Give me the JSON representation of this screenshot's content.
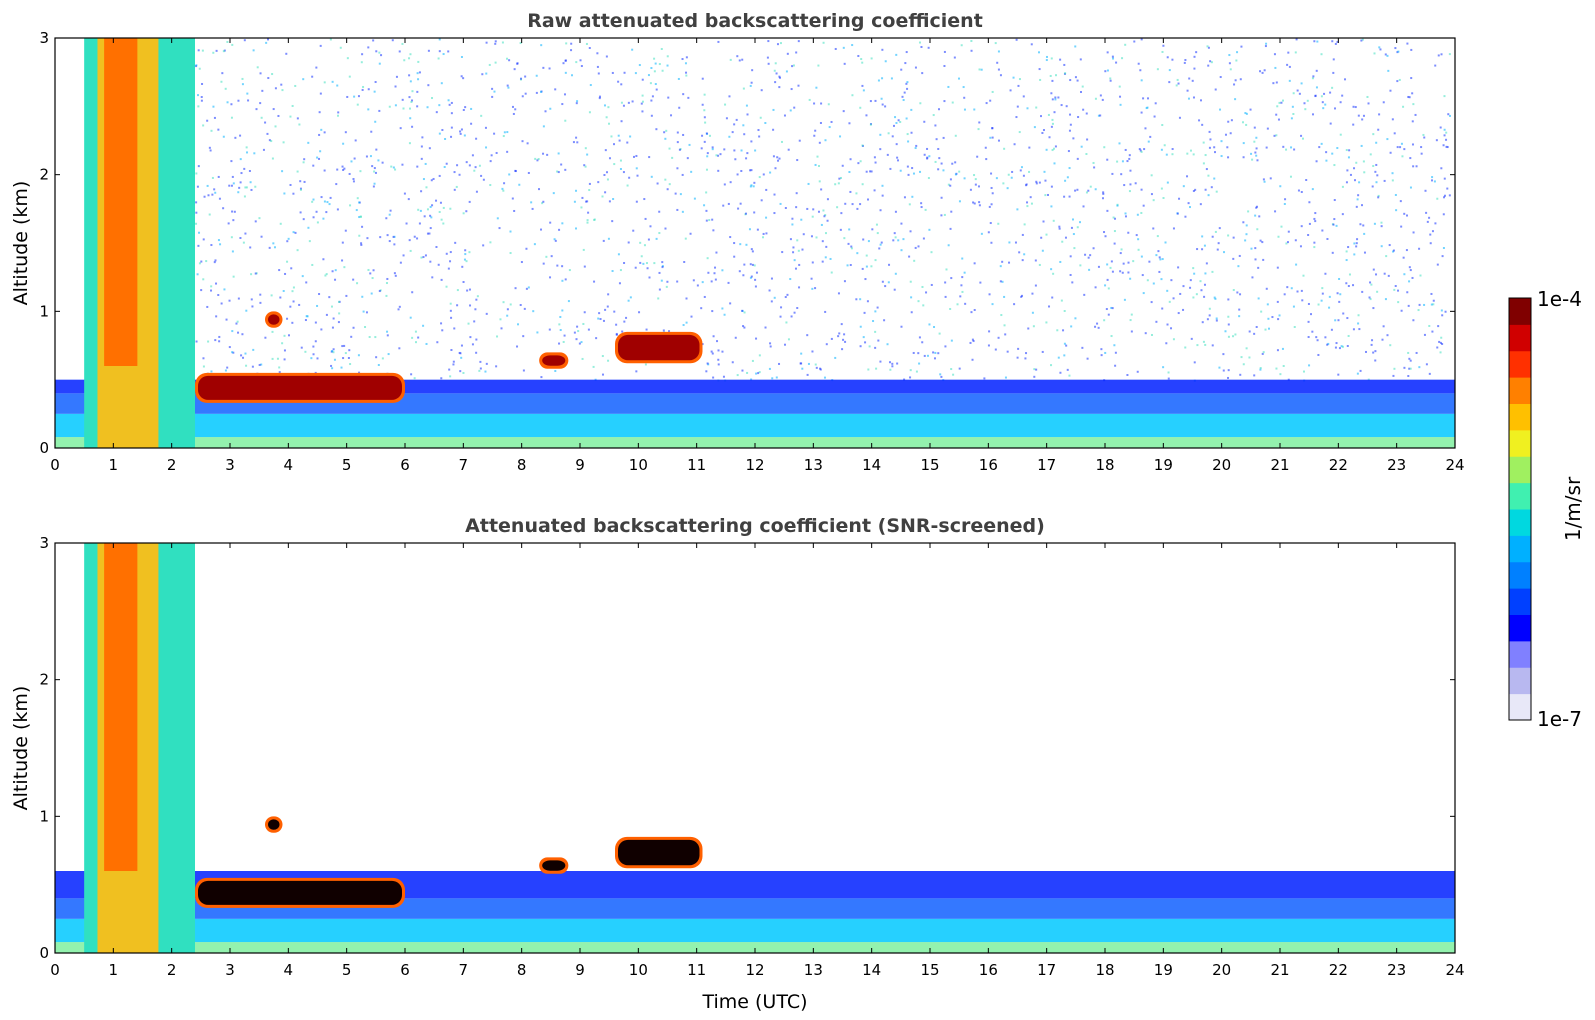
{
  "chart_data": [
    {
      "type": "heatmap",
      "title": "Raw attenuated backscattering coefficient",
      "xlabel": "",
      "ylabel": "Altitude (km)",
      "xlim": [
        0,
        24
      ],
      "ylim": [
        0,
        3
      ],
      "xticks": [
        "0",
        "1",
        "2",
        "3",
        "4",
        "5",
        "6",
        "7",
        "8",
        "9",
        "10",
        "11",
        "12",
        "13",
        "14",
        "15",
        "16",
        "17",
        "18",
        "19",
        "20",
        "21",
        "22",
        "23",
        "24"
      ],
      "yticks": [
        "0",
        "1",
        "2",
        "3"
      ],
      "features": [
        {
          "kind": "cloud",
          "t_start": 0.5,
          "t_end": 2.4,
          "z_bottom": 0.0,
          "z_top": 3.0
        },
        {
          "kind": "cloud",
          "t_start": 3.6,
          "t_end": 3.9,
          "z_bottom": 0.88,
          "z_top": 1.0
        },
        {
          "kind": "cloud",
          "t_start": 2.4,
          "t_end": 6.0,
          "z_bottom": 0.33,
          "z_top": 0.55
        },
        {
          "kind": "cloud",
          "t_start": 8.3,
          "t_end": 8.8,
          "z_bottom": 0.58,
          "z_top": 0.7
        },
        {
          "kind": "cloud",
          "t_start": 9.6,
          "t_end": 11.1,
          "z_bottom": 0.62,
          "z_top": 0.85
        },
        {
          "kind": "boundary_layer",
          "t_start": 0.0,
          "t_end": 24.0,
          "z_top": 0.5
        }
      ],
      "screened": false
    },
    {
      "type": "heatmap",
      "title": "Attenuated backscattering coefficient (SNR-screened)",
      "xlabel": "Time (UTC)",
      "ylabel": "Altitude (km)",
      "xlim": [
        0,
        24
      ],
      "ylim": [
        0,
        3
      ],
      "xticks": [
        "0",
        "1",
        "2",
        "3",
        "4",
        "5",
        "6",
        "7",
        "8",
        "9",
        "10",
        "11",
        "12",
        "13",
        "14",
        "15",
        "16",
        "17",
        "18",
        "19",
        "20",
        "21",
        "22",
        "23",
        "24"
      ],
      "yticks": [
        "0",
        "1",
        "2",
        "3"
      ],
      "features": [
        {
          "kind": "cloud",
          "t_start": 0.5,
          "t_end": 2.4,
          "z_bottom": 0.0,
          "z_top": 3.0
        },
        {
          "kind": "cloud",
          "t_start": 3.6,
          "t_end": 3.9,
          "z_bottom": 0.88,
          "z_top": 1.0
        },
        {
          "kind": "cloud",
          "t_start": 2.4,
          "t_end": 6.0,
          "z_bottom": 0.33,
          "z_top": 0.55
        },
        {
          "kind": "cloud",
          "t_start": 8.3,
          "t_end": 8.8,
          "z_bottom": 0.58,
          "z_top": 0.7
        },
        {
          "kind": "cloud",
          "t_start": 9.6,
          "t_end": 11.1,
          "z_bottom": 0.62,
          "z_top": 0.85
        },
        {
          "kind": "boundary_layer",
          "t_start": 0.0,
          "t_end": 24.0,
          "z_top": 0.6
        }
      ],
      "screened": true
    }
  ],
  "colorbar": {
    "max_label": "1e-4",
    "min_label": "1e-7",
    "unit_label": "1/m/sr",
    "colors": [
      "#e8e8f8",
      "#b8b8f0",
      "#8080ff",
      "#0000ff",
      "#0040ff",
      "#0080ff",
      "#00b0ff",
      "#00d8e0",
      "#40f0b0",
      "#a0f060",
      "#f0f020",
      "#ffc000",
      "#ff8000",
      "#ff3000",
      "#d00000",
      "#800000"
    ]
  }
}
